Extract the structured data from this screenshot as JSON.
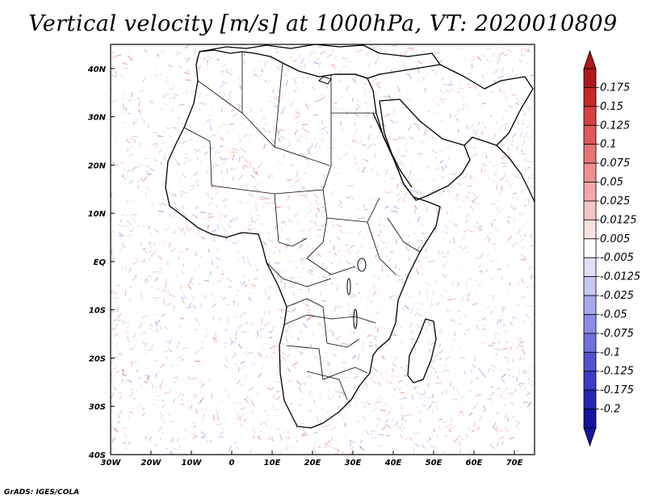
{
  "title": "Vertical velocity [m/s] at 1000hPa, VT: 2020010809",
  "credit": "GrADS: IGES/COLA",
  "map": {
    "lon_range": [
      -30,
      75
    ],
    "lat_range": [
      -40,
      45
    ],
    "x_ticks": [
      -30,
      -20,
      -10,
      0,
      10,
      20,
      30,
      40,
      50,
      60,
      70
    ],
    "x_tick_labels": [
      "30W",
      "20W",
      "10W",
      "0",
      "10E",
      "20E",
      "30E",
      "40E",
      "50E",
      "60E",
      "70E"
    ],
    "y_ticks": [
      40,
      30,
      20,
      10,
      0,
      -10,
      -20,
      -30,
      -40
    ],
    "y_tick_labels": [
      "40N",
      "30N",
      "20N",
      "10N",
      "EQ",
      "10S",
      "20S",
      "30S",
      "40S"
    ]
  },
  "colorbar": {
    "colors": [
      "#b01818",
      "#c82828",
      "#d84040",
      "#e05858",
      "#e87474",
      "#ee9090",
      "#f2a8a8",
      "#f6c4c4",
      "#fbe2e2",
      "#ffffff",
      "#e0e0f8",
      "#c8c8f4",
      "#a8a8ee",
      "#8c8ce6",
      "#7070de",
      "#5252d2",
      "#3c3cc8",
      "#2424b4",
      "#1414a0"
    ],
    "labels": [
      "0.175",
      "0.15",
      "0.125",
      "0.1",
      "0.075",
      "0.05",
      "0.025",
      "0.0125",
      "0.005",
      "-0.005",
      "-0.0125",
      "-0.025",
      "-0.05",
      "-0.075",
      "-0.1",
      "-0.125",
      "-0.175",
      "-0.2"
    ],
    "top_arrow_color": "#b01818",
    "bottom_arrow_color": "#1414a0"
  }
}
